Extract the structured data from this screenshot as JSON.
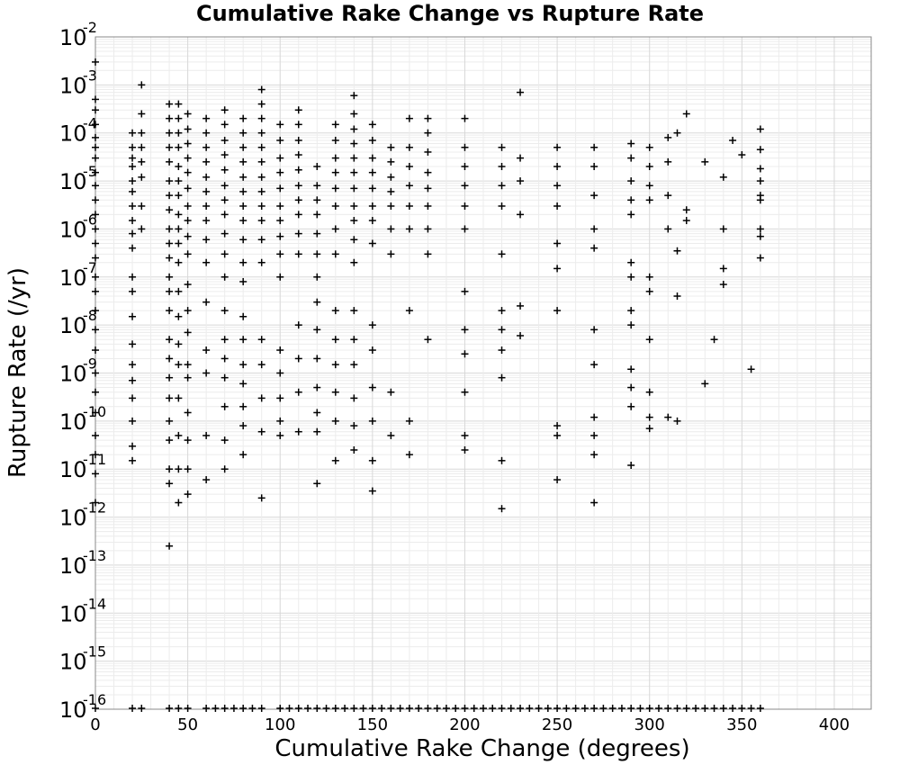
{
  "chart_data": {
    "type": "scatter",
    "title": "Cumulative Rake Change vs Rupture Rate",
    "xlabel": "Cumulative Rake Change (degrees)",
    "ylabel": "Rupture Rate (/yr)",
    "xlim": [
      0,
      420
    ],
    "ylim_log10": [
      -16,
      -2
    ],
    "yscale": "log",
    "marker": "plus",
    "marker_color": "#000000",
    "grid": true,
    "xticks": [
      0,
      50,
      100,
      150,
      200,
      250,
      300,
      350,
      400
    ],
    "yticks": [
      {
        "base": "10",
        "exp": "-16",
        "log": -16
      },
      {
        "base": "10",
        "exp": "-15",
        "log": -15
      },
      {
        "base": "10",
        "exp": "-14",
        "log": -14
      },
      {
        "base": "10",
        "exp": "-13",
        "log": -13
      },
      {
        "base": "10",
        "exp": "-12",
        "log": -12
      },
      {
        "base": "10",
        "exp": "-11",
        "log": -11
      },
      {
        "base": "10",
        "exp": "-10",
        "log": -10
      },
      {
        "base": "10",
        "exp": "-9",
        "log": -9
      },
      {
        "base": "10",
        "exp": "-8",
        "log": -8
      },
      {
        "base": "10",
        "exp": "-7",
        "log": -7
      },
      {
        "base": "10",
        "exp": "-6",
        "log": -6
      },
      {
        "base": "10",
        "exp": "-5",
        "log": -5
      },
      {
        "base": "10",
        "exp": "-4",
        "log": -4
      },
      {
        "base": "10",
        "exp": "-3",
        "log": -3
      },
      {
        "base": "10",
        "exp": "-2",
        "log": -2
      }
    ],
    "columns": [
      {
        "x": 0,
        "rates": [
          "3e-3",
          "5e-4",
          "3e-4",
          "1.5e-4",
          "8e-5",
          "5e-5",
          "3e-5",
          "1.5e-5",
          "8e-6",
          "4e-6",
          "2e-6",
          "1e-6",
          "5e-7",
          "2.5e-7",
          "1e-7",
          "5e-8",
          "2e-8",
          "8e-9",
          "3e-9",
          "1e-9",
          "4e-10",
          "1.5e-10",
          "5e-11",
          "2e-11",
          "8e-12",
          "2e-12"
        ]
      },
      {
        "x": 20,
        "rates": [
          "1e-4",
          "5e-5",
          "3e-5",
          "2e-5",
          "1e-5",
          "6e-6",
          "3e-6",
          "1.5e-6",
          "8e-7",
          "4e-7",
          "1e-7",
          "5e-8",
          "1.5e-8",
          "4e-9",
          "1.5e-9",
          "7e-10",
          "3e-10",
          "1e-10",
          "3e-11",
          "1.5e-11"
        ]
      },
      {
        "x": 25,
        "rates": [
          "1e-3",
          "2.5e-4",
          "1e-4",
          "5e-5",
          "2.5e-5",
          "1.2e-5",
          "3e-6",
          "1e-6"
        ]
      },
      {
        "x": 40,
        "rates": [
          "4e-4",
          "2e-4",
          "1e-4",
          "5e-5",
          "2.5e-5",
          "1e-5",
          "5e-6",
          "2.5e-6",
          "1e-6",
          "5e-7",
          "2.5e-7",
          "1e-7",
          "5e-8",
          "2e-8",
          "5e-9",
          "2e-9",
          "8e-10",
          "3e-10",
          "1e-10",
          "4e-11",
          "1e-11",
          "5e-12",
          "2.5e-13"
        ]
      },
      {
        "x": 45,
        "rates": [
          "4e-4",
          "2e-4",
          "1e-4",
          "5e-5",
          "2e-5",
          "1e-5",
          "5e-6",
          "2e-6",
          "1e-6",
          "5e-7",
          "2e-7",
          "5e-8",
          "1.5e-8",
          "4e-9",
          "1.5e-9",
          "3e-10",
          "5e-11",
          "1e-11",
          "2e-12"
        ]
      },
      {
        "x": 50,
        "rates": [
          "2.5e-4",
          "1.2e-4",
          "6e-5",
          "3e-5",
          "1.5e-5",
          "7e-6",
          "3e-6",
          "1.5e-6",
          "7e-7",
          "3e-7",
          "7e-8",
          "2e-8",
          "7e-9",
          "1.5e-9",
          "8e-10",
          "1.5e-10",
          "4e-11",
          "1e-11",
          "3e-12"
        ]
      },
      {
        "x": 60,
        "rates": [
          "2e-4",
          "1e-4",
          "5e-5",
          "2.5e-5",
          "1.2e-5",
          "6e-6",
          "3e-6",
          "1.5e-6",
          "6e-7",
          "2e-7",
          "3e-8",
          "3e-9",
          "1e-9",
          "5e-11",
          "6e-12"
        ]
      },
      {
        "x": 70,
        "rates": [
          "3e-4",
          "1.5e-4",
          "7e-5",
          "3.5e-5",
          "1.7e-5",
          "8e-6",
          "4e-6",
          "2e-6",
          "8e-7",
          "3e-7",
          "1e-7",
          "2e-8",
          "5e-9",
          "2e-9",
          "8e-10",
          "2e-10",
          "4e-11",
          "1e-11"
        ]
      },
      {
        "x": 80,
        "rates": [
          "2e-4",
          "1e-4",
          "5e-5",
          "2.5e-5",
          "1.2e-5",
          "6e-6",
          "3e-6",
          "1.5e-6",
          "6e-7",
          "2e-7",
          "8e-8",
          "1.5e-8",
          "5e-9",
          "1.5e-9",
          "6e-10",
          "2e-10",
          "8e-11",
          "2e-11"
        ]
      },
      {
        "x": 90,
        "rates": [
          "8e-4",
          "4e-4",
          "2e-4",
          "1e-4",
          "5e-5",
          "2.5e-5",
          "1.2e-5",
          "6e-6",
          "3e-6",
          "1.5e-6",
          "6e-7",
          "2e-7",
          "5e-9",
          "1.5e-9",
          "3e-10",
          "6e-11",
          "2.5e-12"
        ]
      },
      {
        "x": 100,
        "rates": [
          "1.5e-4",
          "7e-5",
          "3e-5",
          "1.5e-5",
          "7e-6",
          "3e-6",
          "1.5e-6",
          "7e-7",
          "3e-7",
          "1e-7",
          "3e-9",
          "1e-9",
          "3e-10",
          "1e-10",
          "5e-11"
        ]
      },
      {
        "x": 110,
        "rates": [
          "3e-4",
          "1.5e-4",
          "7e-5",
          "3.5e-5",
          "1.7e-5",
          "8e-6",
          "4e-6",
          "2e-6",
          "8e-7",
          "3e-7",
          "1e-8",
          "2e-9",
          "4e-10",
          "6e-11"
        ]
      },
      {
        "x": 120,
        "rates": [
          "2e-5",
          "8e-6",
          "4e-6",
          "2e-6",
          "8e-7",
          "3e-7",
          "1e-7",
          "3e-8",
          "8e-9",
          "2e-9",
          "5e-10",
          "1.5e-10",
          "6e-11",
          "5e-12"
        ]
      },
      {
        "x": 130,
        "rates": [
          "1.5e-4",
          "7e-5",
          "3e-5",
          "1.5e-5",
          "7e-6",
          "3e-6",
          "1e-6",
          "3e-7",
          "2e-8",
          "5e-9",
          "1.5e-9",
          "4e-10",
          "1e-10",
          "1.5e-11"
        ]
      },
      {
        "x": 140,
        "rates": [
          "6e-4",
          "2.5e-4",
          "1.2e-4",
          "6e-5",
          "3e-5",
          "1.5e-5",
          "7e-6",
          "3e-6",
          "1.5e-6",
          "6e-7",
          "2e-7",
          "2e-8",
          "5e-9",
          "1.5e-9",
          "3e-10",
          "8e-11",
          "2.5e-11"
        ]
      },
      {
        "x": 150,
        "rates": [
          "1.5e-4",
          "7e-5",
          "3e-5",
          "1.5e-5",
          "7e-6",
          "3e-6",
          "1.5e-6",
          "5e-7",
          "1e-8",
          "3e-9",
          "5e-10",
          "1e-10",
          "1.5e-11",
          "3.5e-12"
        ]
      },
      {
        "x": 160,
        "rates": [
          "5e-5",
          "2.5e-5",
          "1.2e-5",
          "6e-6",
          "3e-6",
          "1e-6",
          "3e-7",
          "4e-10",
          "5e-11"
        ]
      },
      {
        "x": 170,
        "rates": [
          "2e-4",
          "5e-5",
          "2e-5",
          "8e-6",
          "3e-6",
          "1e-6",
          "2e-8",
          "1e-10",
          "2e-11"
        ]
      },
      {
        "x": 180,
        "rates": [
          "2e-4",
          "1e-4",
          "4e-5",
          "1.5e-5",
          "7e-6",
          "3e-6",
          "1e-6",
          "3e-7",
          "5e-9"
        ]
      },
      {
        "x": 200,
        "rates": [
          "2e-4",
          "5e-5",
          "2e-5",
          "8e-6",
          "3e-6",
          "1e-6",
          "5e-8",
          "8e-9",
          "2.5e-9",
          "4e-10",
          "5e-11",
          "2.5e-11"
        ]
      },
      {
        "x": 220,
        "rates": [
          "5e-5",
          "2e-5",
          "8e-6",
          "3e-6",
          "3e-7",
          "2e-8",
          "8e-9",
          "3e-9",
          "8e-10",
          "1.5e-11",
          "1.5e-12"
        ]
      },
      {
        "x": 230,
        "rates": [
          "7e-4",
          "3e-5",
          "1e-5",
          "2e-6",
          "2.5e-8",
          "6e-9"
        ]
      },
      {
        "x": 250,
        "rates": [
          "5e-5",
          "2e-5",
          "8e-6",
          "3e-6",
          "5e-7",
          "1.5e-7",
          "2e-8",
          "8e-11",
          "5e-11",
          "6e-12"
        ]
      },
      {
        "x": 270,
        "rates": [
          "5e-5",
          "2e-5",
          "5e-6",
          "1e-6",
          "4e-7",
          "8e-9",
          "1.5e-9",
          "1.2e-10",
          "5e-11",
          "2e-11",
          "2e-12"
        ]
      },
      {
        "x": 290,
        "rates": [
          "6e-5",
          "3e-5",
          "1e-5",
          "4e-6",
          "2e-6",
          "2e-7",
          "1e-7",
          "2e-8",
          "1e-8",
          "1.2e-9",
          "5e-10",
          "2e-10",
          "1.2e-11"
        ]
      },
      {
        "x": 300,
        "rates": [
          "5e-5",
          "2e-5",
          "8e-6",
          "4e-6",
          "1e-7",
          "5e-8",
          "5e-9",
          "4e-10",
          "1.2e-10",
          "7e-11"
        ]
      },
      {
        "x": 310,
        "rates": [
          "8e-5",
          "2.5e-5",
          "5e-6",
          "1e-6",
          "1.2e-10"
        ]
      },
      {
        "x": 315,
        "rates": [
          "1e-4",
          "3.5e-7",
          "4e-8",
          "1e-10"
        ]
      },
      {
        "x": 320,
        "rates": [
          "2.5e-4",
          "2.5e-6",
          "1.5e-6"
        ]
      },
      {
        "x": 330,
        "rates": [
          "2.5e-5",
          "6e-10"
        ]
      },
      {
        "x": 335,
        "rates": [
          "5e-9"
        ]
      },
      {
        "x": 340,
        "rates": [
          "1.2e-5",
          "1e-6",
          "1.5e-7",
          "7e-8"
        ]
      },
      {
        "x": 345,
        "rates": [
          "7e-5"
        ]
      },
      {
        "x": 350,
        "rates": [
          "3.5e-5"
        ]
      },
      {
        "x": 355,
        "rates": [
          "1.2e-9"
        ]
      },
      {
        "x": 360,
        "rates": [
          "1.2e-4",
          "4.5e-5",
          "1.8e-5",
          "1e-5",
          "5e-6",
          "4e-6",
          "1e-6",
          "7e-7",
          "2.5e-7"
        ]
      }
    ],
    "floor_row": {
      "rate": "1e-16",
      "x": [
        0,
        20,
        25,
        40,
        45,
        50,
        60,
        65,
        70,
        75,
        80,
        85,
        90,
        100,
        105,
        110,
        115,
        120,
        125,
        130,
        135,
        140,
        145,
        150,
        155,
        160,
        165,
        170,
        175,
        180,
        185,
        190,
        195,
        200,
        205,
        210,
        215,
        220,
        225,
        230,
        235,
        240,
        245,
        250,
        255,
        260,
        265,
        270,
        275,
        280,
        285,
        290,
        295,
        300,
        305,
        310,
        315,
        320,
        325,
        330,
        335,
        340,
        345,
        350,
        355,
        360
      ]
    }
  }
}
